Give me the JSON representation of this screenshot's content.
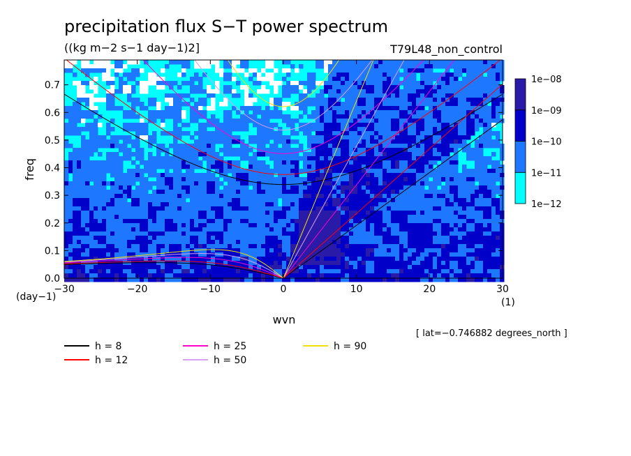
{
  "chart_data": {
    "type": "heatmap",
    "title": "precipitation flux S−T power spectrum",
    "units_label": "((kg m−2 s−1 day−1)2]",
    "run_label": "T79L48_non_control",
    "xlabel": "wvn",
    "ylabel": "freq",
    "x_unit_label": "(1)",
    "y_unit_label": "(day−1)",
    "xlim": [
      -30,
      30
    ],
    "ylim": [
      0,
      0.79
    ],
    "x_ticks": [
      -30,
      -20,
      -10,
      0,
      10,
      20,
      30
    ],
    "x_tick_labels": [
      "−30",
      "−20",
      "−10",
      "0",
      "10",
      "20",
      "30"
    ],
    "y_ticks": [
      0,
      0.1,
      0.2,
      0.3,
      0.4,
      0.5,
      0.6,
      0.7
    ],
    "y_tick_labels": [
      "0.0",
      "0.1",
      "0.2",
      "0.3",
      "0.4",
      "0.5",
      "0.6",
      "0.7"
    ],
    "colorbar": {
      "levels": [
        "1e−12",
        "1e−11",
        "1e−10",
        "1e−09",
        "1e−08"
      ],
      "colors": [
        "#00ffff",
        "#1e78ff",
        "#0000c8",
        "#2a1aa8",
        "#5a0fb4"
      ]
    },
    "background_color": "#ffffff",
    "dispersion_curves": [
      {
        "name": "h =  8",
        "h": 8,
        "color": "#000000"
      },
      {
        "name": "h = 12",
        "h": 12,
        "color": "#ff0000"
      },
      {
        "name": "h = 25",
        "h": 25,
        "color": "#ff00cc"
      },
      {
        "name": "h = 50",
        "h": 50,
        "color": "#d8a0f0"
      },
      {
        "name": "h = 90",
        "h": 90,
        "color": "#f0e000"
      }
    ],
    "annotation": "[ lat=−0.746882 degrees_north ]"
  }
}
